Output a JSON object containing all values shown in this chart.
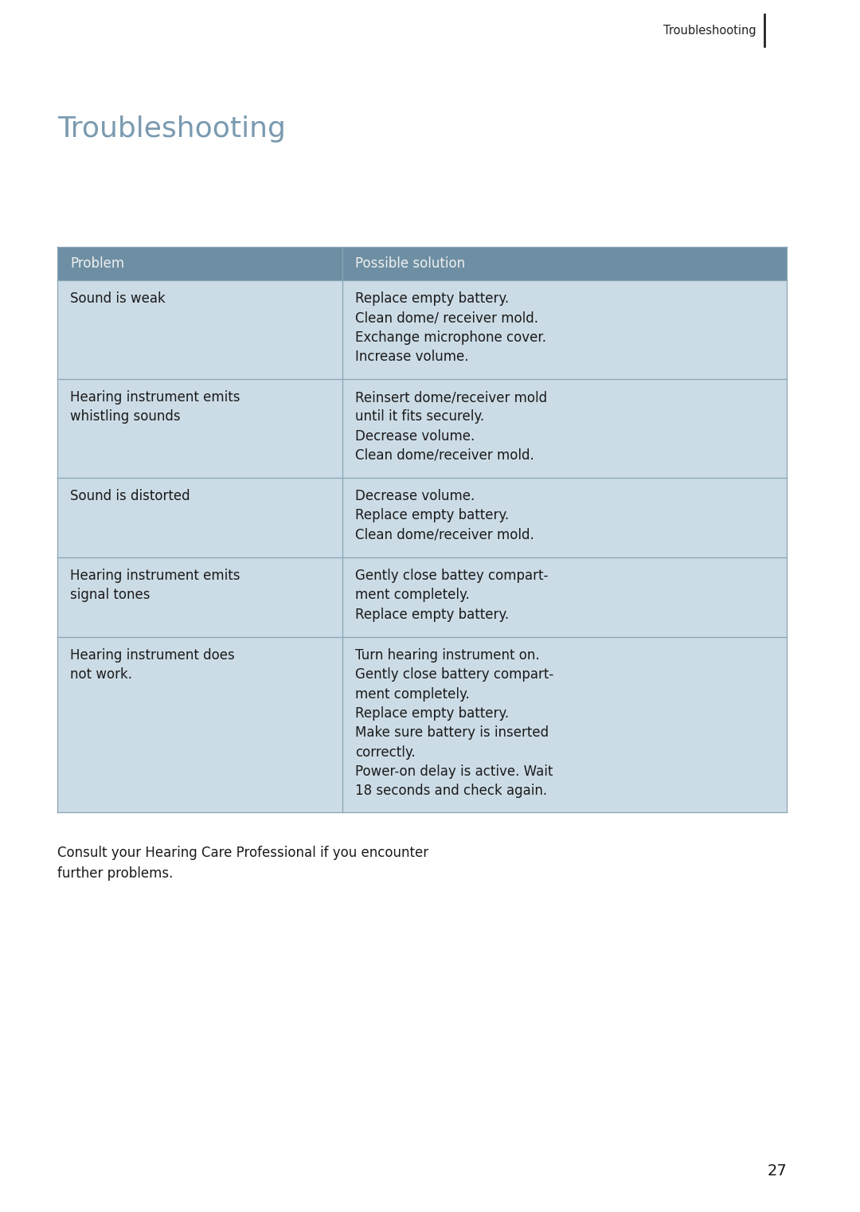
{
  "page_title_header": "Troubleshooting",
  "page_title_main": "Troubleshooting",
  "header_col1": "Problem",
  "header_col2": "Possible solution",
  "header_bg": "#6e8fa3",
  "header_text_color": "#f0f0f0",
  "row_bg": "#ccdce6",
  "row_text_color": "#1a1a1a",
  "table_border_color": "#8aa5b5",
  "title_color": "#7a9ab0",
  "footer_text_line1": "Consult your Hearing Care Professional if you encounter",
  "footer_text_line2": "further problems.",
  "page_number": "27",
  "header_line_color": "#222222",
  "rows": [
    {
      "problem": "Sound is weak",
      "solution": "Replace empty battery.\nClean dome/ receiver mold.\nExchange microphone cover.\nIncrease volume."
    },
    {
      "problem": "Hearing instrument emits\nwhistling sounds",
      "solution": "Reinsert dome/receiver mold\nuntil it fits securely.\nDecrease volume.\nClean dome/receiver mold."
    },
    {
      "problem": "Sound is distorted",
      "solution": "Decrease volume.\nReplace empty battery.\nClean dome/receiver mold."
    },
    {
      "problem": "Hearing instrument emits\nsignal tones",
      "solution": "Gently close battey compart-\nment completely.\nReplace empty battery."
    },
    {
      "problem": "Hearing instrument does\nnot work.",
      "solution": "Turn hearing instrument on.\nGently close battery compart-\nment completely.\nReplace empty battery.\nMake sure battery is inserted\ncorrectly.\nPower-on delay is active. Wait\n18 seconds and check again."
    }
  ],
  "bg_color": "#ffffff",
  "font_size_title_header": 10.5,
  "font_size_title_main": 26,
  "font_size_table": 12,
  "font_size_footer": 12,
  "font_size_page_num": 14
}
